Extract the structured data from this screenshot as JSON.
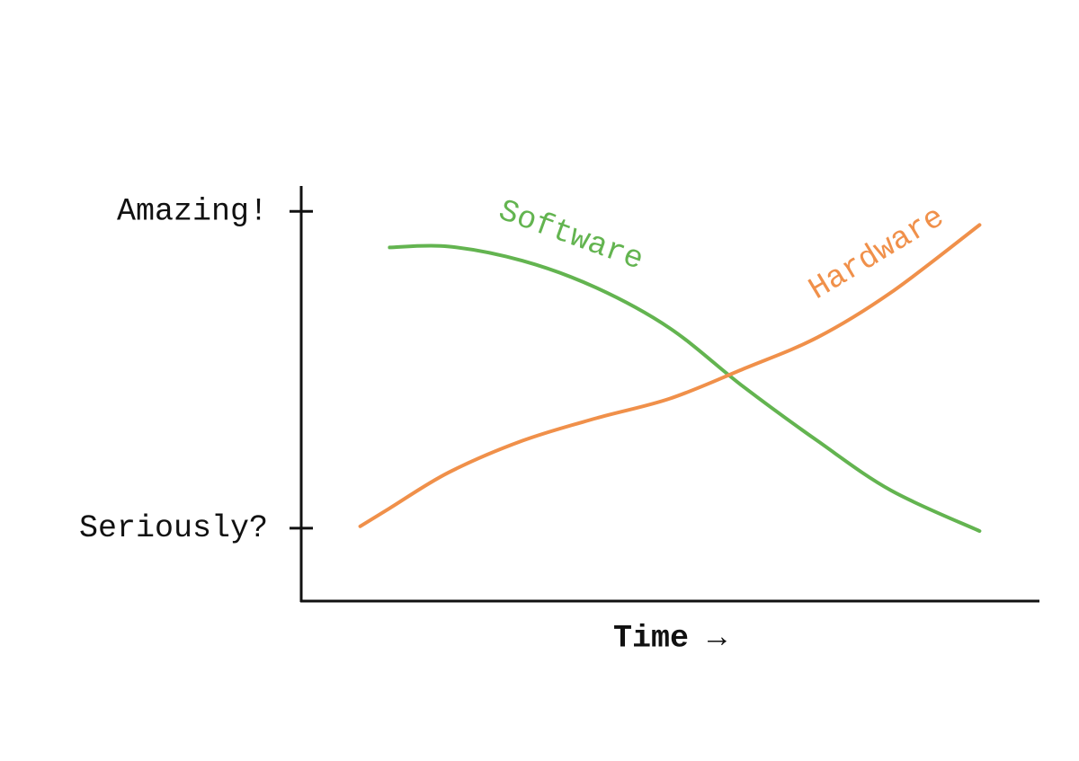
{
  "chart_data": {
    "type": "line",
    "x_label": "Time →",
    "x": [
      8,
      12,
      20,
      30,
      40,
      50,
      60,
      70,
      80,
      92
    ],
    "xlim": [
      0,
      100
    ],
    "ylim": [
      -0.23,
      1.08
    ],
    "yticks": [
      {
        "value": 0,
        "label": "Seriously?"
      },
      {
        "value": 1,
        "label": "Amazing!"
      }
    ],
    "series": [
      {
        "name": "Software",
        "color": "#63b450",
        "values": [
          null,
          0.886,
          0.889,
          0.844,
          0.759,
          0.631,
          0.446,
          0.276,
          0.119,
          -0.009
        ]
      },
      {
        "name": "Hardware",
        "color": "#f0904a",
        "values": [
          0.006,
          0.063,
          0.176,
          0.276,
          0.347,
          0.409,
          0.503,
          0.602,
          0.744,
          0.957
        ]
      }
    ]
  }
}
